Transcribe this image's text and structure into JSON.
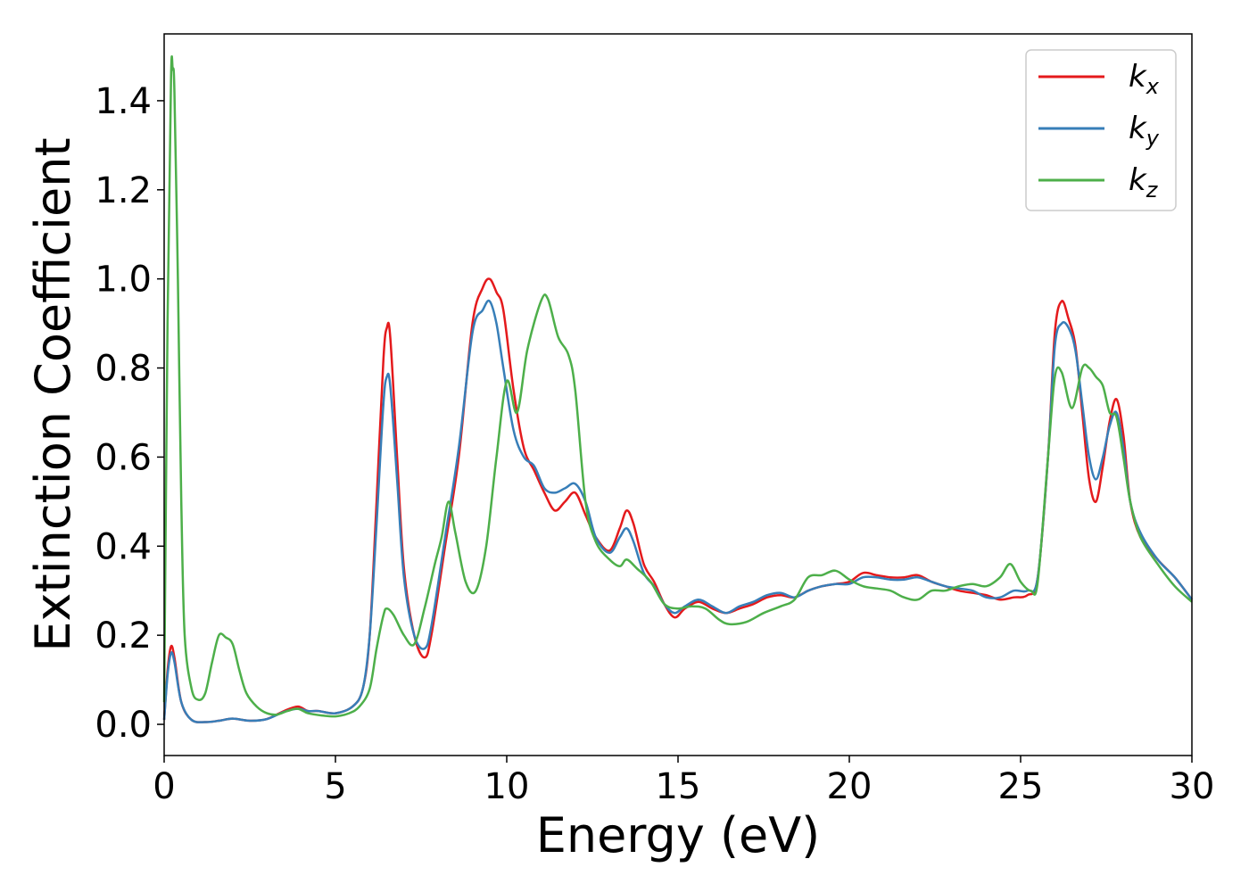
{
  "chart_data": {
    "type": "line",
    "title": "",
    "xlabel": "Energy (eV)",
    "ylabel": "Extinction Coefficient",
    "xlim": [
      0,
      30
    ],
    "ylim": [
      -0.07,
      1.55
    ],
    "xticks": [
      0,
      5,
      10,
      15,
      20,
      25,
      30
    ],
    "xtick_labels": [
      "0",
      "5",
      "10",
      "15",
      "20",
      "25",
      "30"
    ],
    "yticks": [
      0.0,
      0.2,
      0.4,
      0.6,
      0.8,
      1.0,
      1.2,
      1.4
    ],
    "ytick_labels": [
      "0.0",
      "0.2",
      "0.4",
      "0.6",
      "0.8",
      "1.0",
      "1.2",
      "1.4"
    ],
    "grid": false,
    "legend_position": "top-right",
    "series": [
      {
        "name": "k_x",
        "label_base": "k",
        "label_sub": "x",
        "color": "#e41a1c",
        "points": [
          [
            0,
            0.01
          ],
          [
            0.1,
            0.12
          ],
          [
            0.2,
            0.175
          ],
          [
            0.3,
            0.15
          ],
          [
            0.5,
            0.05
          ],
          [
            0.8,
            0.01
          ],
          [
            1.2,
            0.005
          ],
          [
            1.6,
            0.008
          ],
          [
            2.0,
            0.013
          ],
          [
            2.5,
            0.008
          ],
          [
            3.0,
            0.012
          ],
          [
            3.5,
            0.03
          ],
          [
            3.9,
            0.04
          ],
          [
            4.2,
            0.03
          ],
          [
            4.5,
            0.03
          ],
          [
            5.0,
            0.025
          ],
          [
            5.5,
            0.04
          ],
          [
            5.8,
            0.08
          ],
          [
            6.0,
            0.2
          ],
          [
            6.2,
            0.5
          ],
          [
            6.4,
            0.82
          ],
          [
            6.5,
            0.89
          ],
          [
            6.6,
            0.87
          ],
          [
            6.8,
            0.6
          ],
          [
            7.0,
            0.35
          ],
          [
            7.3,
            0.2
          ],
          [
            7.6,
            0.15
          ],
          [
            7.8,
            0.2
          ],
          [
            8.2,
            0.4
          ],
          [
            8.6,
            0.6
          ],
          [
            9.0,
            0.9
          ],
          [
            9.3,
            0.98
          ],
          [
            9.5,
            1.0
          ],
          [
            9.7,
            0.97
          ],
          [
            9.9,
            0.93
          ],
          [
            10.2,
            0.75
          ],
          [
            10.5,
            0.62
          ],
          [
            10.8,
            0.57
          ],
          [
            11.1,
            0.52
          ],
          [
            11.4,
            0.48
          ],
          [
            11.7,
            0.5
          ],
          [
            12.0,
            0.52
          ],
          [
            12.3,
            0.47
          ],
          [
            12.6,
            0.42
          ],
          [
            13.0,
            0.39
          ],
          [
            13.3,
            0.44
          ],
          [
            13.5,
            0.48
          ],
          [
            13.7,
            0.45
          ],
          [
            14.0,
            0.36
          ],
          [
            14.3,
            0.32
          ],
          [
            14.6,
            0.27
          ],
          [
            14.9,
            0.24
          ],
          [
            15.2,
            0.26
          ],
          [
            15.6,
            0.275
          ],
          [
            16.0,
            0.26
          ],
          [
            16.4,
            0.25
          ],
          [
            16.8,
            0.26
          ],
          [
            17.2,
            0.27
          ],
          [
            17.6,
            0.285
          ],
          [
            18.0,
            0.29
          ],
          [
            18.4,
            0.285
          ],
          [
            18.8,
            0.3
          ],
          [
            19.2,
            0.31
          ],
          [
            19.6,
            0.315
          ],
          [
            20.0,
            0.32
          ],
          [
            20.4,
            0.34
          ],
          [
            20.8,
            0.335
          ],
          [
            21.2,
            0.33
          ],
          [
            21.6,
            0.33
          ],
          [
            22.0,
            0.335
          ],
          [
            22.4,
            0.32
          ],
          [
            22.8,
            0.31
          ],
          [
            23.2,
            0.3
          ],
          [
            23.6,
            0.295
          ],
          [
            24.0,
            0.29
          ],
          [
            24.4,
            0.28
          ],
          [
            24.8,
            0.285
          ],
          [
            25.2,
            0.29
          ],
          [
            25.5,
            0.33
          ],
          [
            25.8,
            0.6
          ],
          [
            26.0,
            0.88
          ],
          [
            26.2,
            0.95
          ],
          [
            26.4,
            0.91
          ],
          [
            26.6,
            0.85
          ],
          [
            26.8,
            0.7
          ],
          [
            27.0,
            0.55
          ],
          [
            27.2,
            0.5
          ],
          [
            27.4,
            0.58
          ],
          [
            27.6,
            0.68
          ],
          [
            27.8,
            0.73
          ],
          [
            28.0,
            0.65
          ],
          [
            28.2,
            0.5
          ],
          [
            28.5,
            0.42
          ],
          [
            29.0,
            0.37
          ],
          [
            29.5,
            0.33
          ],
          [
            30.0,
            0.28
          ]
        ]
      },
      {
        "name": "k_y",
        "label_base": "k",
        "label_sub": "y",
        "color": "#377eb8",
        "points": [
          [
            0,
            0.01
          ],
          [
            0.1,
            0.11
          ],
          [
            0.2,
            0.16
          ],
          [
            0.3,
            0.14
          ],
          [
            0.5,
            0.05
          ],
          [
            0.8,
            0.01
          ],
          [
            1.2,
            0.005
          ],
          [
            1.6,
            0.008
          ],
          [
            2.0,
            0.013
          ],
          [
            2.5,
            0.008
          ],
          [
            3.0,
            0.012
          ],
          [
            3.5,
            0.028
          ],
          [
            3.9,
            0.035
          ],
          [
            4.2,
            0.03
          ],
          [
            4.5,
            0.03
          ],
          [
            5.0,
            0.025
          ],
          [
            5.5,
            0.04
          ],
          [
            5.8,
            0.08
          ],
          [
            6.0,
            0.2
          ],
          [
            6.2,
            0.45
          ],
          [
            6.4,
            0.72
          ],
          [
            6.5,
            0.78
          ],
          [
            6.6,
            0.76
          ],
          [
            6.8,
            0.55
          ],
          [
            7.0,
            0.33
          ],
          [
            7.3,
            0.2
          ],
          [
            7.6,
            0.17
          ],
          [
            7.8,
            0.22
          ],
          [
            8.2,
            0.42
          ],
          [
            8.6,
            0.62
          ],
          [
            9.0,
            0.88
          ],
          [
            9.3,
            0.93
          ],
          [
            9.5,
            0.95
          ],
          [
            9.7,
            0.9
          ],
          [
            9.9,
            0.8
          ],
          [
            10.2,
            0.66
          ],
          [
            10.5,
            0.6
          ],
          [
            10.8,
            0.58
          ],
          [
            11.1,
            0.53
          ],
          [
            11.4,
            0.52
          ],
          [
            11.7,
            0.53
          ],
          [
            12.0,
            0.54
          ],
          [
            12.3,
            0.5
          ],
          [
            12.6,
            0.42
          ],
          [
            13.0,
            0.385
          ],
          [
            13.3,
            0.42
          ],
          [
            13.5,
            0.44
          ],
          [
            13.7,
            0.41
          ],
          [
            14.0,
            0.34
          ],
          [
            14.3,
            0.31
          ],
          [
            14.6,
            0.27
          ],
          [
            14.9,
            0.25
          ],
          [
            15.2,
            0.265
          ],
          [
            15.6,
            0.28
          ],
          [
            16.0,
            0.265
          ],
          [
            16.4,
            0.25
          ],
          [
            16.8,
            0.265
          ],
          [
            17.2,
            0.275
          ],
          [
            17.6,
            0.29
          ],
          [
            18.0,
            0.295
          ],
          [
            18.4,
            0.285
          ],
          [
            18.8,
            0.3
          ],
          [
            19.2,
            0.31
          ],
          [
            19.6,
            0.315
          ],
          [
            20.0,
            0.315
          ],
          [
            20.4,
            0.33
          ],
          [
            20.8,
            0.33
          ],
          [
            21.2,
            0.325
          ],
          [
            21.6,
            0.325
          ],
          [
            22.0,
            0.33
          ],
          [
            22.4,
            0.32
          ],
          [
            22.8,
            0.31
          ],
          [
            23.2,
            0.305
          ],
          [
            23.6,
            0.3
          ],
          [
            24.0,
            0.285
          ],
          [
            24.4,
            0.285
          ],
          [
            24.8,
            0.3
          ],
          [
            25.2,
            0.3
          ],
          [
            25.5,
            0.33
          ],
          [
            25.8,
            0.6
          ],
          [
            26.0,
            0.85
          ],
          [
            26.2,
            0.9
          ],
          [
            26.4,
            0.89
          ],
          [
            26.6,
            0.84
          ],
          [
            26.8,
            0.72
          ],
          [
            27.0,
            0.6
          ],
          [
            27.2,
            0.55
          ],
          [
            27.4,
            0.6
          ],
          [
            27.6,
            0.67
          ],
          [
            27.8,
            0.7
          ],
          [
            28.0,
            0.62
          ],
          [
            28.2,
            0.5
          ],
          [
            28.5,
            0.43
          ],
          [
            29.0,
            0.37
          ],
          [
            29.5,
            0.33
          ],
          [
            30.0,
            0.28
          ]
        ]
      },
      {
        "name": "k_z",
        "label_base": "k",
        "label_sub": "z",
        "color": "#4daf4a",
        "points": [
          [
            0,
            0.05
          ],
          [
            0.1,
            0.9
          ],
          [
            0.2,
            1.45
          ],
          [
            0.25,
            1.47
          ],
          [
            0.3,
            1.42
          ],
          [
            0.4,
            1.0
          ],
          [
            0.5,
            0.5
          ],
          [
            0.6,
            0.2
          ],
          [
            0.8,
            0.08
          ],
          [
            1.0,
            0.055
          ],
          [
            1.2,
            0.07
          ],
          [
            1.4,
            0.14
          ],
          [
            1.6,
            0.2
          ],
          [
            1.8,
            0.195
          ],
          [
            2.0,
            0.18
          ],
          [
            2.2,
            0.12
          ],
          [
            2.4,
            0.07
          ],
          [
            2.7,
            0.04
          ],
          [
            3.0,
            0.025
          ],
          [
            3.3,
            0.022
          ],
          [
            3.6,
            0.03
          ],
          [
            3.9,
            0.035
          ],
          [
            4.2,
            0.025
          ],
          [
            4.6,
            0.02
          ],
          [
            5.0,
            0.018
          ],
          [
            5.4,
            0.025
          ],
          [
            5.7,
            0.04
          ],
          [
            6.0,
            0.08
          ],
          [
            6.2,
            0.17
          ],
          [
            6.4,
            0.245
          ],
          [
            6.5,
            0.26
          ],
          [
            6.7,
            0.245
          ],
          [
            7.0,
            0.2
          ],
          [
            7.3,
            0.18
          ],
          [
            7.6,
            0.26
          ],
          [
            7.9,
            0.36
          ],
          [
            8.1,
            0.42
          ],
          [
            8.3,
            0.5
          ],
          [
            8.5,
            0.43
          ],
          [
            8.8,
            0.32
          ],
          [
            9.1,
            0.3
          ],
          [
            9.4,
            0.4
          ],
          [
            9.7,
            0.6
          ],
          [
            10.0,
            0.77
          ],
          [
            10.3,
            0.7
          ],
          [
            10.6,
            0.84
          ],
          [
            11.0,
            0.95
          ],
          [
            11.2,
            0.955
          ],
          [
            11.5,
            0.87
          ],
          [
            11.8,
            0.83
          ],
          [
            12.0,
            0.75
          ],
          [
            12.3,
            0.5
          ],
          [
            12.6,
            0.41
          ],
          [
            13.0,
            0.37
          ],
          [
            13.3,
            0.355
          ],
          [
            13.5,
            0.37
          ],
          [
            13.8,
            0.35
          ],
          [
            14.2,
            0.32
          ],
          [
            14.6,
            0.27
          ],
          [
            15.0,
            0.26
          ],
          [
            15.4,
            0.265
          ],
          [
            15.8,
            0.26
          ],
          [
            16.2,
            0.235
          ],
          [
            16.5,
            0.225
          ],
          [
            17.0,
            0.23
          ],
          [
            17.5,
            0.25
          ],
          [
            18.0,
            0.265
          ],
          [
            18.4,
            0.28
          ],
          [
            18.8,
            0.33
          ],
          [
            19.2,
            0.335
          ],
          [
            19.6,
            0.345
          ],
          [
            20.0,
            0.325
          ],
          [
            20.4,
            0.31
          ],
          [
            20.8,
            0.305
          ],
          [
            21.2,
            0.3
          ],
          [
            21.6,
            0.285
          ],
          [
            22.0,
            0.28
          ],
          [
            22.4,
            0.3
          ],
          [
            22.8,
            0.3
          ],
          [
            23.2,
            0.31
          ],
          [
            23.6,
            0.315
          ],
          [
            24.0,
            0.31
          ],
          [
            24.4,
            0.33
          ],
          [
            24.7,
            0.36
          ],
          [
            25.0,
            0.32
          ],
          [
            25.3,
            0.3
          ],
          [
            25.5,
            0.32
          ],
          [
            25.8,
            0.6
          ],
          [
            26.0,
            0.78
          ],
          [
            26.2,
            0.79
          ],
          [
            26.5,
            0.71
          ],
          [
            26.8,
            0.8
          ],
          [
            27.0,
            0.8
          ],
          [
            27.2,
            0.78
          ],
          [
            27.4,
            0.76
          ],
          [
            27.6,
            0.7
          ],
          [
            27.8,
            0.69
          ],
          [
            28.0,
            0.6
          ],
          [
            28.2,
            0.5
          ],
          [
            28.5,
            0.42
          ],
          [
            29.0,
            0.36
          ],
          [
            29.5,
            0.31
          ],
          [
            30.0,
            0.275
          ]
        ]
      }
    ]
  }
}
